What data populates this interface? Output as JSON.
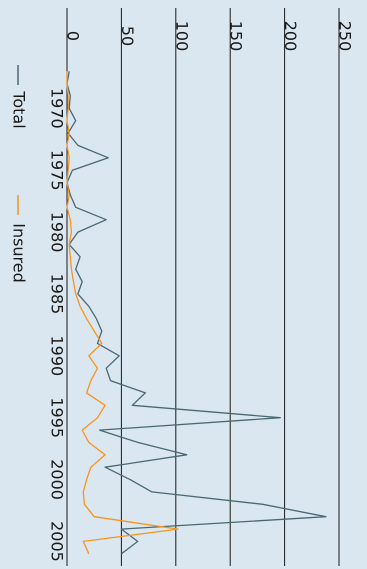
{
  "chart_data": {
    "type": "line",
    "title": "",
    "xlabel": "",
    "ylabel": "",
    "orientation": "rotated 90 degrees clockwise (x axis runs top to bottom, y axis runs left to right)",
    "x": [
      1967,
      1968,
      1969,
      1970,
      1971,
      1972,
      1973,
      1974,
      1975,
      1976,
      1977,
      1978,
      1979,
      1980,
      1981,
      1982,
      1983,
      1984,
      1985,
      1986,
      1987,
      1988,
      1989,
      1990,
      1991,
      1992,
      1993,
      1994,
      1995,
      1996,
      1997,
      1998,
      1999,
      2000,
      2001,
      2002,
      2003,
      2004,
      2005,
      2006
    ],
    "xticks": [
      1970,
      1975,
      1980,
      1985,
      1990,
      1995,
      2000,
      2005
    ],
    "xlim": [
      1966.5,
      2006.5
    ],
    "ylim": [
      -14,
      250
    ],
    "yticks": [
      0,
      50,
      100,
      150,
      200,
      250
    ],
    "grid": "horizontal gridlines at y ticks",
    "legend_position": "bottom",
    "series": [
      {
        "name": "Total",
        "color": "#4a6872",
        "values": [
          2,
          0,
          3,
          2,
          8,
          1,
          10,
          38,
          5,
          0,
          3,
          8,
          36,
          10,
          2,
          12,
          8,
          14,
          10,
          20,
          27,
          32,
          28,
          48,
          36,
          40,
          72,
          60,
          196,
          30,
          65,
          110,
          35,
          58,
          78,
          180,
          238,
          50,
          65,
          50
        ]
      },
      {
        "name": "Insured",
        "color": "#f7941d",
        "values": [
          0,
          0,
          1,
          1,
          0,
          2,
          0,
          2,
          1,
          0,
          2,
          0,
          3,
          4,
          2,
          3,
          4,
          6,
          8,
          12,
          18,
          25,
          32,
          20,
          28,
          22,
          18,
          35,
          28,
          14,
          20,
          35,
          22,
          18,
          15,
          16,
          25,
          102,
          15,
          20
        ]
      }
    ]
  }
}
